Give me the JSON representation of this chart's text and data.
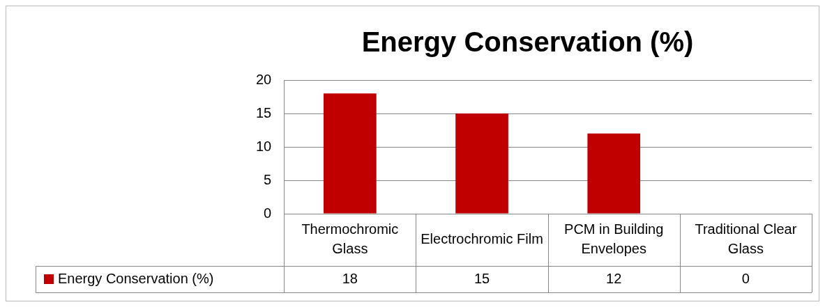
{
  "chart_data": {
    "type": "bar",
    "title": "Energy Conservation (%)",
    "categories": [
      "Thermochromic Glass",
      "Electrochromic Film",
      "PCM in Building Envelopes",
      "Traditional Clear Glass"
    ],
    "series": [
      {
        "name": "Energy Conservation (%)",
        "color": "#c00000",
        "values": [
          18,
          15,
          12,
          0
        ]
      }
    ],
    "ylim": [
      0,
      20
    ],
    "yticks": [
      0,
      5,
      10,
      15,
      20
    ],
    "grid": "y",
    "data_labels": true
  }
}
